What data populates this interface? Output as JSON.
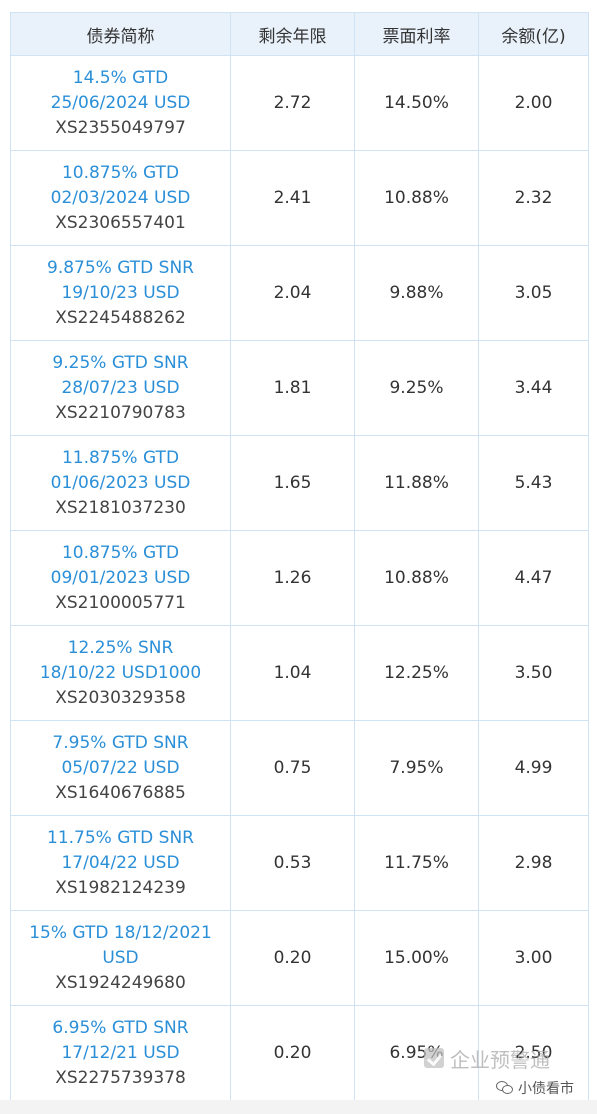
{
  "table": {
    "headers": [
      "债券简称",
      "剩余年限",
      "票面利率",
      "余额(亿)"
    ],
    "rows": [
      {
        "name1": "14.5% GTD",
        "name2": "25/06/2024 USD",
        "code": "XS2355049797",
        "years": "2.72",
        "rate": "14.50%",
        "amount": "2.00"
      },
      {
        "name1": "10.875% GTD",
        "name2": "02/03/2024 USD",
        "code": "XS2306557401",
        "years": "2.41",
        "rate": "10.88%",
        "amount": "2.32"
      },
      {
        "name1": "9.875% GTD SNR",
        "name2": "19/10/23 USD",
        "code": "XS2245488262",
        "years": "2.04",
        "rate": "9.88%",
        "amount": "3.05"
      },
      {
        "name1": "9.25% GTD SNR",
        "name2": "28/07/23 USD",
        "code": "XS2210790783",
        "years": "1.81",
        "rate": "9.25%",
        "amount": "3.44"
      },
      {
        "name1": "11.875% GTD",
        "name2": "01/06/2023 USD",
        "code": "XS2181037230",
        "years": "1.65",
        "rate": "11.88%",
        "amount": "5.43"
      },
      {
        "name1": "10.875% GTD",
        "name2": "09/01/2023 USD",
        "code": "XS2100005771",
        "years": "1.26",
        "rate": "10.88%",
        "amount": "4.47"
      },
      {
        "name1": "12.25% SNR",
        "name2": "18/10/22 USD1000",
        "code": "XS2030329358",
        "years": "1.04",
        "rate": "12.25%",
        "amount": "3.50"
      },
      {
        "name1": "7.95% GTD SNR",
        "name2": "05/07/22 USD",
        "code": "XS1640676885",
        "years": "0.75",
        "rate": "7.95%",
        "amount": "4.99"
      },
      {
        "name1": "11.75% GTD SNR",
        "name2": "17/04/22 USD",
        "code": "XS1982124239",
        "years": "0.53",
        "rate": "11.75%",
        "amount": "2.98"
      },
      {
        "name1": "15% GTD 18/12/2021",
        "name2": "USD",
        "code": "XS1924249680",
        "years": "0.20",
        "rate": "15.00%",
        "amount": "3.00"
      },
      {
        "name1": "6.95% GTD SNR",
        "name2": "17/12/21 USD",
        "code": "XS2275739378",
        "years": "0.20",
        "rate": "6.95%",
        "amount": "2.50"
      }
    ]
  },
  "watermark": {
    "brand": "企业预警通",
    "account": "小债看市",
    "logo_icon": "check-logo-icon",
    "wechat_icon": "wechat-icon"
  }
}
